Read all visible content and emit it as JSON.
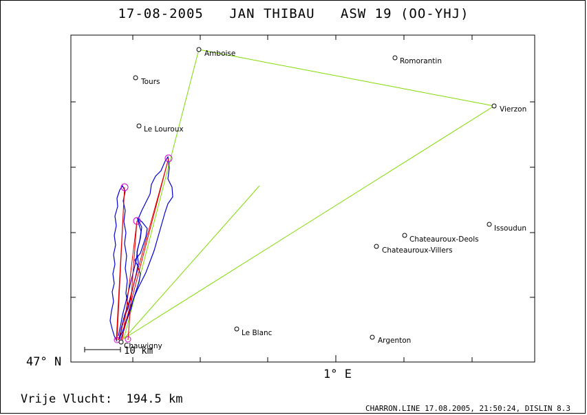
{
  "header": {
    "date": "17-08-2005",
    "pilot": "JAN THIBAU",
    "glider": "ASW 19 (OO-YHJ)"
  },
  "map": {
    "lat_label": "47° N",
    "lon_label": "1° E",
    "scale_label": "10 km",
    "places": [
      {
        "name": "Amboise"
      },
      {
        "name": "Romorantin"
      },
      {
        "name": "Tours"
      },
      {
        "name": "Vierzon"
      },
      {
        "name": "Le Louroux"
      },
      {
        "name": "Issoudun"
      },
      {
        "name": "Chateauroux-Deols"
      },
      {
        "name": "Chateauroux-Villers"
      },
      {
        "name": "Le Blanc"
      },
      {
        "name": "Argenton"
      },
      {
        "name": "Chauvigny"
      }
    ],
    "colors": {
      "task": "#7fdc00",
      "track": "#0000d0",
      "legs": "#e00000",
      "turnpoints": "#d000d0"
    }
  },
  "footer": {
    "label": "Vrije Vlucht:",
    "distance": "194.5 km",
    "stamp": "CHARRON.LINE 17.08.2005, 21:50:24, DISLIN 8.3"
  }
}
